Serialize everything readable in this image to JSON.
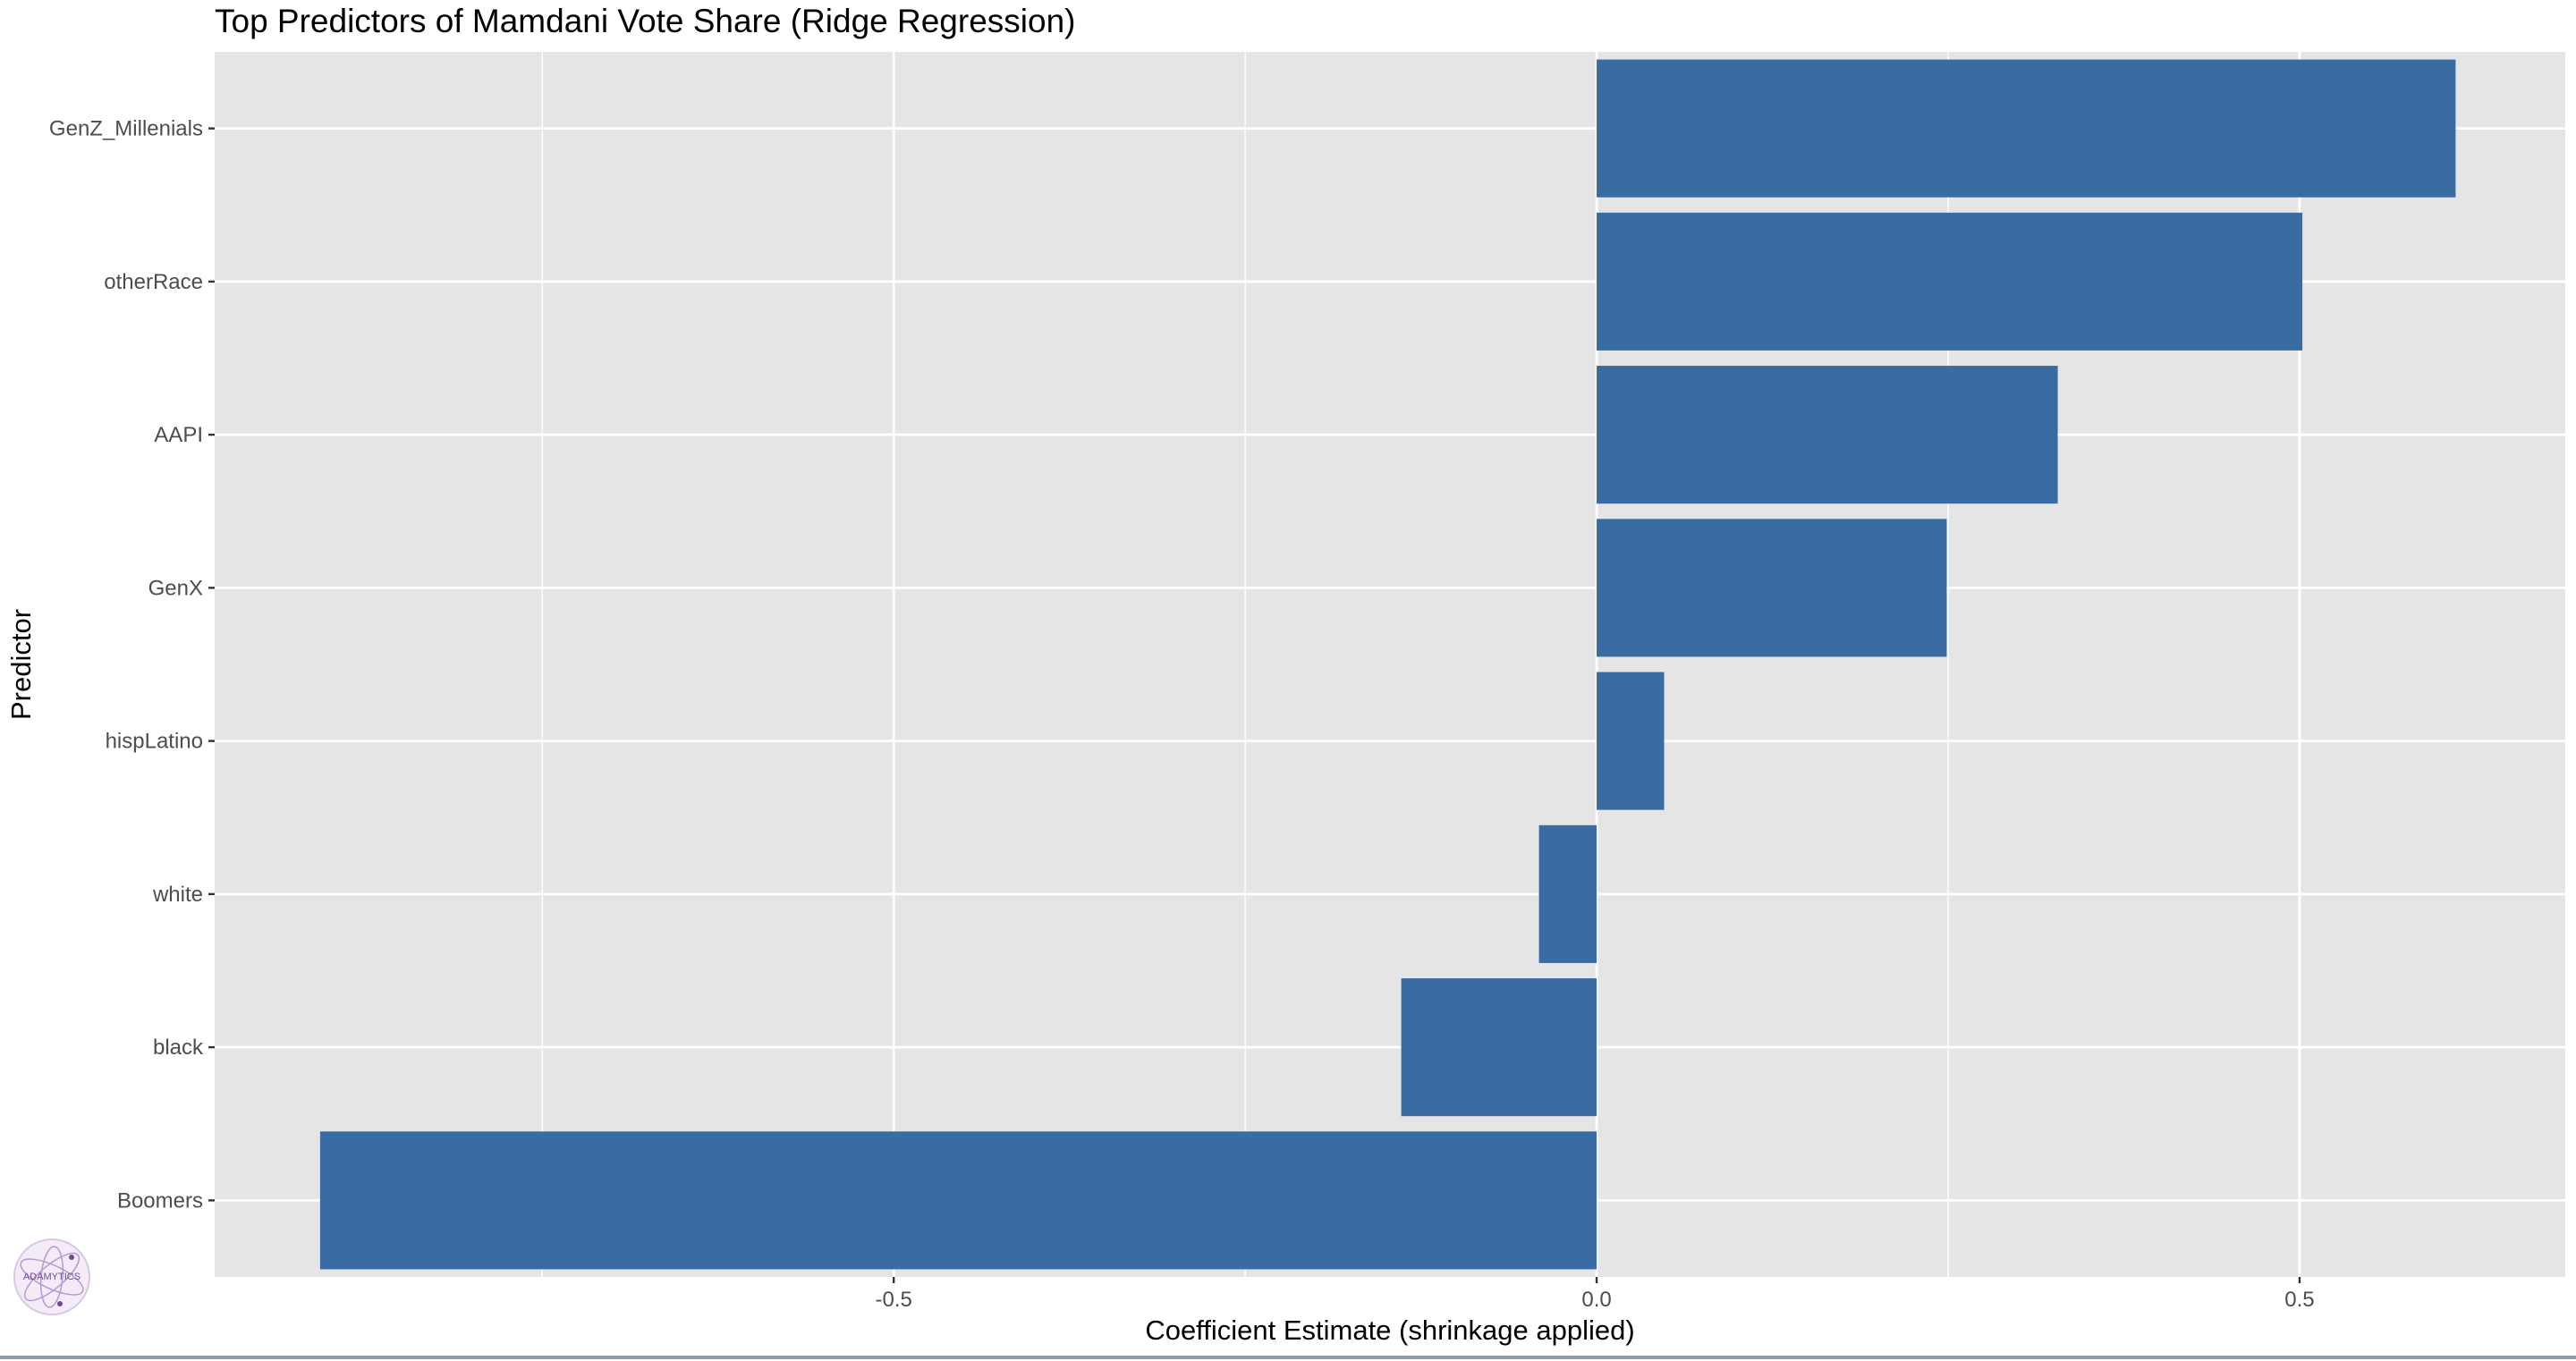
{
  "chart_data": {
    "type": "bar",
    "orientation": "horizontal",
    "title": "Top Predictors of Mamdani Vote Share (Ridge Regression)",
    "xlabel": "Coefficient Estimate (shrinkage applied)",
    "ylabel": "Predictor",
    "categories": [
      "GenZ_Millenials",
      "otherRace",
      "AAPI",
      "GenX",
      "hispLatino",
      "white",
      "black",
      "Boomers"
    ],
    "values": [
      0.611,
      0.502,
      0.328,
      0.249,
      0.048,
      -0.041,
      -0.139,
      -0.908
    ],
    "xlim": [
      -0.983,
      0.689
    ],
    "x_ticks": [
      -0.5,
      0.0,
      0.5
    ],
    "x_tick_labels": [
      "-0.5",
      "0.0",
      "0.5"
    ],
    "grid": true,
    "legend": "none"
  },
  "colors": {
    "bar": "#3a6ca4",
    "panel": "#e5e5e5",
    "grid": "#ffffff",
    "text": "#000000",
    "tick_text": "#4d4d4d",
    "tick": "#333333"
  },
  "logo": {
    "text": "ADAMYTICS",
    "icon": "atom-logo-icon"
  }
}
